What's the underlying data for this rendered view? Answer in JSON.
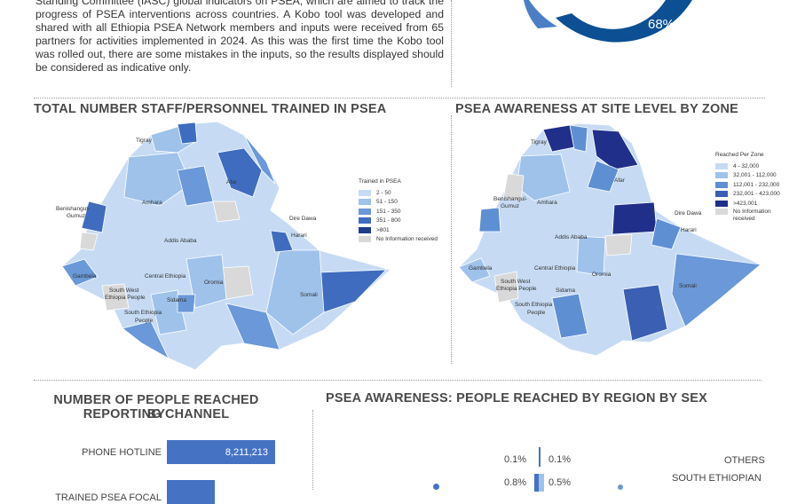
{
  "intro_text": "Standing Committee (IASC) global indicators on PSEA, which are aimed to track the progress of PSEA interventions across countries.  A Kobo tool was developed and shared with all Ethiopia PSEA Network members and inputs were received from 65 partners for activities implemented in 2024.  As this was the first time the Kobo tool was rolled out, there are some mistakes in the inputs, so the results displayed should be considered as indicative only.",
  "donut": {
    "value_label": "68%",
    "value": 68,
    "color_main": "#0c4f92",
    "color_secondary": "#4a7fc6"
  },
  "map_trained": {
    "title": "TOTAL NUMBER STAFF/PERSONNEL TRAINED IN PSEA",
    "legend_title": "Trained in PSEA",
    "legend": [
      {
        "label": "2 - 50",
        "color": "#c6dbf3"
      },
      {
        "label": "51 - 150",
        "color": "#9ec2ea"
      },
      {
        "label": "151 - 350",
        "color": "#6a98d8"
      },
      {
        "label": "351 - 800",
        "color": "#3f6cbf"
      },
      {
        "label": ">801",
        "color": "#1f3b8c"
      },
      {
        "label": "No Information received",
        "color": "#d9d9d9"
      }
    ],
    "labels": [
      "Tigray",
      "Afar",
      "Amhara",
      "Benishangul-\nGumuz",
      "Dire Dawa",
      "Harari",
      "Addis Ababa",
      "Gambela",
      "Central Ethiopia",
      "Oromia",
      "Somali",
      "South West\nEthiopia People",
      "Sidama",
      "South Ethiopia\nPeople"
    ]
  },
  "map_awareness": {
    "title": "PSEA AWARENESS AT SITE LEVEL BY ZONE",
    "legend_title": "Reached Per Zone",
    "legend": [
      {
        "label": "4 - 32,000",
        "color": "#c6dbf3"
      },
      {
        "label": "32,001 - 112,000",
        "color": "#9ec2ea"
      },
      {
        "label": "112,001 - 232,000",
        "color": "#5f8fd3"
      },
      {
        "label": "232,001 - 423,000",
        "color": "#3a5fb3"
      },
      {
        "label": ">423,001",
        "color": "#1f2f8a"
      },
      {
        "label": "No Information received",
        "color": "#d9d9d9"
      }
    ],
    "labels": [
      "Tigray",
      "Afar",
      "Amhara",
      "Benishangul-\nGumuz",
      "Dire Dawa",
      "Harari",
      "Addis Ababa",
      "Gambela",
      "Central Ethiopia",
      "Oromia",
      "Somali",
      "South West\nEthiopia People",
      "Sidama",
      "South Ethiopia\nPeople"
    ]
  },
  "channel_chart": {
    "title_line1": "NUMBER OF PEOPLE REACHED BY",
    "title_line2": "REPORTING CHANNEL",
    "rows": [
      {
        "label": "PHONE HOTLINE",
        "value_label": "8,211,213",
        "value": 8211213
      },
      {
        "label": "TRAINED PSEA FOCAL",
        "value_label": "",
        "value": 3800000
      }
    ]
  },
  "sex_chart": {
    "title": "PSEA AWARENESS: PEOPLE REACHED BY REGION BY SEX",
    "rows": [
      {
        "region": "OTHERS",
        "left_pct": "0.1%",
        "right_pct": "0.1%"
      },
      {
        "region": "SOUTH ETHIOPIAN",
        "left_pct": "0.8%",
        "right_pct": "0.5%"
      }
    ]
  }
}
